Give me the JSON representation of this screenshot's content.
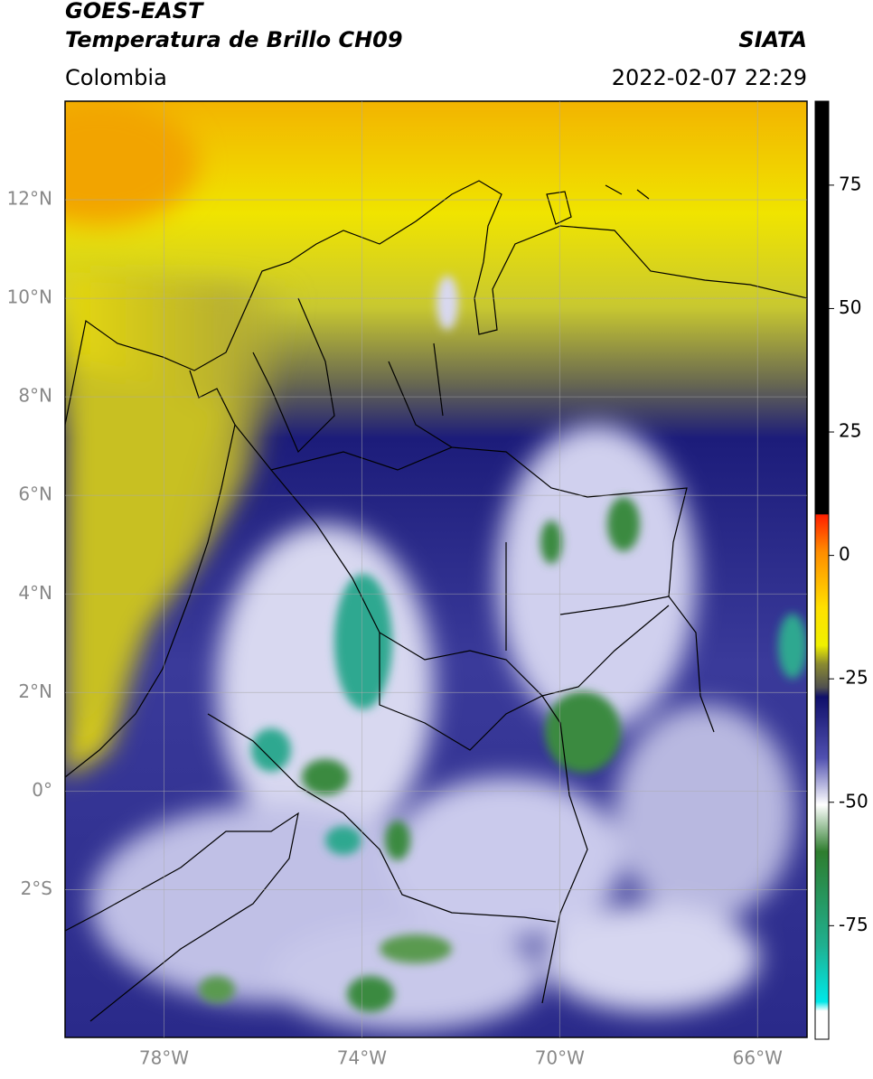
{
  "header": {
    "title": "GOES-EAST",
    "subtitle": "Temperatura de Brillo CH09",
    "agency": "SIATA",
    "region": "Colombia",
    "timestamp": "2022-02-07 22:29"
  },
  "map": {
    "xlim": [
      -80,
      -65
    ],
    "ylim": [
      -5,
      14
    ],
    "xticks": [
      {
        "value": -78,
        "label": "78°W"
      },
      {
        "value": -74,
        "label": "74°W"
      },
      {
        "value": -70,
        "label": "70°W"
      },
      {
        "value": -66,
        "label": "66°W"
      }
    ],
    "yticks": [
      {
        "value": 12,
        "label": "12°N"
      },
      {
        "value": 10,
        "label": "10°N"
      },
      {
        "value": 8,
        "label": "8°N"
      },
      {
        "value": 6,
        "label": "6°N"
      },
      {
        "value": 4,
        "label": "4°N"
      },
      {
        "value": 2,
        "label": "2°N"
      },
      {
        "value": 0,
        "label": "0°"
      },
      {
        "value": -2,
        "label": "2°S"
      }
    ]
  },
  "colorbar": {
    "lim": [
      -98,
      92
    ],
    "ticks": [
      75,
      50,
      25,
      0,
      -25,
      -50,
      -75
    ]
  }
}
